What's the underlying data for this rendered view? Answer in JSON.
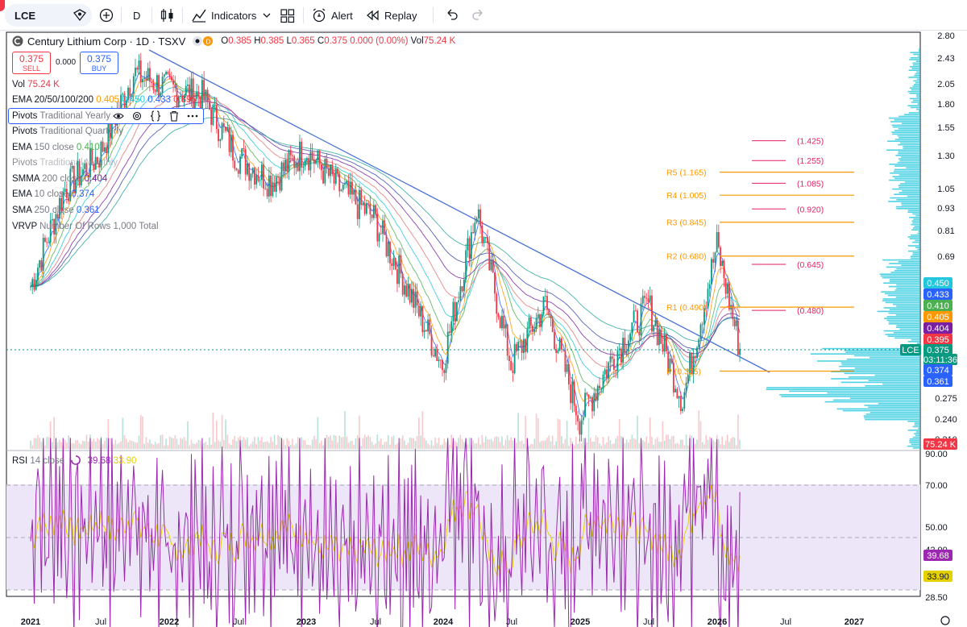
{
  "toolbar": {
    "symbol": "LCE",
    "interval": "D",
    "indicators_label": "Indicators",
    "alert_label": "Alert",
    "replay_label": "Replay"
  },
  "legend": {
    "title": "Century Lithium Corp · 1D · TSXV",
    "o_label": "O",
    "o": "0.385",
    "h_label": "H",
    "h": "0.385",
    "l_label": "L",
    "l": "0.365",
    "c_label": "C",
    "c": "0.375",
    "change": "0.000 (0.00%)",
    "vol_label": "Vol",
    "vol": "75.24 K",
    "sell_price": "0.375",
    "sell_label": "SELL",
    "spread": "0.000",
    "buy_price": "0.375",
    "buy_label": "BUY"
  },
  "indicators": [
    {
      "name": "Vol",
      "params": "",
      "values": [
        {
          "v": "75.24 K",
          "color": "#f23645"
        }
      ]
    },
    {
      "name": "EMA 20/50/100/200",
      "params": "",
      "values": [
        {
          "v": "0.405",
          "color": "#ff9800"
        },
        {
          "v": "0.450",
          "color": "#22c7dd"
        },
        {
          "v": "0.433",
          "color": "#2962ff"
        },
        {
          "v": "0.395",
          "color": "#f23645"
        }
      ]
    },
    {
      "name": "Pivots",
      "params": "Traditional Yearly",
      "values": []
    },
    {
      "name": "Pivots",
      "params": "Traditional Quarterly",
      "values": []
    },
    {
      "name": "EMA",
      "params": "150 close",
      "values": [
        {
          "v": "0.410",
          "color": "#4caf50"
        }
      ]
    },
    {
      "name": "Pivots",
      "params": "Traditional Monthly",
      "values": []
    },
    {
      "name": "SMMA",
      "params": "200 close",
      "values": [
        {
          "v": "0.404",
          "color": "#7b1fa2"
        }
      ]
    },
    {
      "name": "EMA",
      "params": "10 close",
      "values": [
        {
          "v": "0.374",
          "color": "#2962ff"
        }
      ]
    },
    {
      "name": "SMA",
      "params": "250 close",
      "values": [
        {
          "v": "0.361",
          "color": "#2962ff"
        }
      ]
    },
    {
      "name": "VRVP",
      "params": "Number Of Rows 1,000 Total",
      "values": []
    }
  ],
  "rsi_legend": {
    "name": "RSI",
    "params": "14 close",
    "value1": "39.68",
    "value2": "33.90"
  },
  "colors": {
    "up": "#089981",
    "down": "#f23645",
    "trend": "#4a72d4",
    "vrvp": "#22c7dd",
    "rsi": "#9c27b0",
    "rsi_ma": "#e5d100",
    "pivot_orange": "#ff9800",
    "pivot_red": "#e91e63"
  },
  "chart_data": {
    "type": "candlestick",
    "symbol": "LCE",
    "price_axis_ticks": [
      "2.80",
      "2.43",
      "2.05",
      "1.80",
      "1.55",
      "1.30",
      "1.05",
      "0.93",
      "0.81",
      "0.69",
      "0.275",
      "0.240",
      "0.210"
    ],
    "price_scale": "log",
    "time_axis_ticks": [
      "2021",
      "Jul",
      "2022",
      "Jul",
      "2023",
      "Jul",
      "2024",
      "Jul",
      "2025",
      "Jul",
      "2026",
      "Jul",
      "2027"
    ],
    "approx_close_series": [
      {
        "x": "2021-01",
        "y": 0.56
      },
      {
        "x": "2021-04",
        "y": 1.05
      },
      {
        "x": "2021-07",
        "y": 1.3
      },
      {
        "x": "2021-10",
        "y": 2.2
      },
      {
        "x": "2022-01",
        "y": 2.0
      },
      {
        "x": "2022-04",
        "y": 1.9
      },
      {
        "x": "2022-07",
        "y": 1.3
      },
      {
        "x": "2022-10",
        "y": 1.1
      },
      {
        "x": "2023-01",
        "y": 1.35
      },
      {
        "x": "2023-04",
        "y": 1.05
      },
      {
        "x": "2023-07",
        "y": 0.87
      },
      {
        "x": "2023-10",
        "y": 0.55
      },
      {
        "x": "2024-01",
        "y": 0.34
      },
      {
        "x": "2024-04",
        "y": 0.92
      },
      {
        "x": "2024-07",
        "y": 0.34
      },
      {
        "x": "2024-10",
        "y": 0.5
      },
      {
        "x": "2025-01",
        "y": 0.24
      },
      {
        "x": "2025-04",
        "y": 0.36
      },
      {
        "x": "2025-07",
        "y": 0.5
      },
      {
        "x": "2025-10",
        "y": 0.27
      },
      {
        "x": "2026-01",
        "y": 0.73
      },
      {
        "x": "2026-03",
        "y": 0.375
      }
    ],
    "pivots": [
      {
        "label": "R5 (1.165)",
        "value": 1.165
      },
      {
        "label": "R4 (1.005)",
        "value": 1.005
      },
      {
        "label": "R3 (0.845)",
        "value": 0.845
      },
      {
        "label": "R2 (0.680)",
        "value": 0.68
      },
      {
        "label": "R1 (0.490)",
        "value": 0.49
      },
      {
        "label": "P (0.325)",
        "value": 0.325
      }
    ],
    "quarterly_levels": [
      {
        "label": "(1.425)",
        "value": 1.425
      },
      {
        "label": "(1.255)",
        "value": 1.255
      },
      {
        "label": "(1.085)",
        "value": 1.085
      },
      {
        "label": "(0.920)",
        "value": 0.92
      },
      {
        "label": "(0.645)",
        "value": 0.645
      },
      {
        "label": "(0.480)",
        "value": 0.48
      }
    ],
    "price_labels": [
      {
        "text": "0.450",
        "color": "#22c7dd"
      },
      {
        "text": "0.433",
        "color": "#2962ff"
      },
      {
        "text": "0.410",
        "color": "#4caf50"
      },
      {
        "text": "0.405",
        "color": "#ff9800"
      },
      {
        "text": "0.404",
        "color": "#7b1fa2"
      },
      {
        "text": "0.395",
        "color": "#f23645"
      },
      {
        "text": "LCE",
        "color": "#089981"
      },
      {
        "text": "0.375",
        "color": "#089981"
      },
      {
        "text": "03:11:36",
        "color": "#089981"
      },
      {
        "text": "0.374",
        "color": "#2962ff"
      },
      {
        "text": "0.361",
        "color": "#2962ff"
      },
      {
        "text": "75.24 K",
        "color": "#f23645"
      }
    ],
    "rsi": {
      "axis_ticks": [
        "90.00",
        "70.00",
        "50.00",
        "42.00",
        "28.50"
      ],
      "upper": 70,
      "middle": 50,
      "lower": 30,
      "value": "39.68",
      "ma_value": "33.90"
    }
  }
}
